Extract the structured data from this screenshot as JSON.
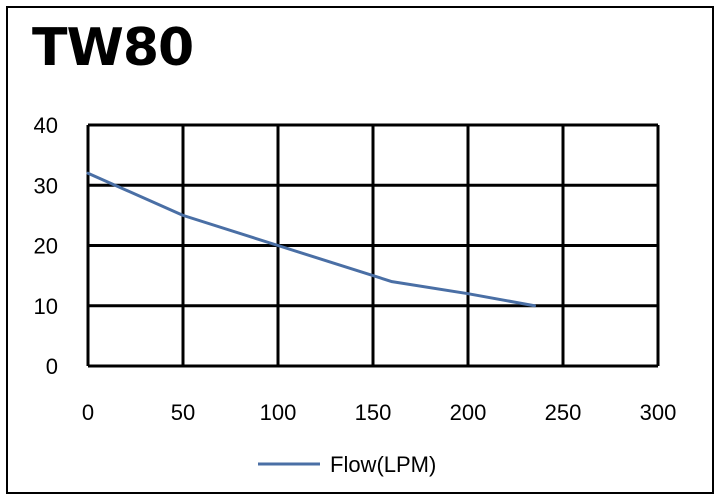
{
  "chart_data": {
    "type": "line",
    "title": "TW80",
    "xlabel": "",
    "ylabel": "",
    "xlim": [
      0,
      300
    ],
    "ylim": [
      0,
      40
    ],
    "x_ticks": [
      "0",
      "50",
      "100",
      "150",
      "200",
      "250",
      "300"
    ],
    "y_ticks": [
      "0",
      "10",
      "20",
      "30",
      "40"
    ],
    "grid": true,
    "legend_position": "bottom",
    "series": [
      {
        "name": "Flow(LPM)",
        "color": "#4a6fa5",
        "x": [
          0,
          50,
          100,
          160,
          200,
          235
        ],
        "y": [
          32,
          25,
          20,
          14,
          12,
          10
        ]
      }
    ]
  }
}
